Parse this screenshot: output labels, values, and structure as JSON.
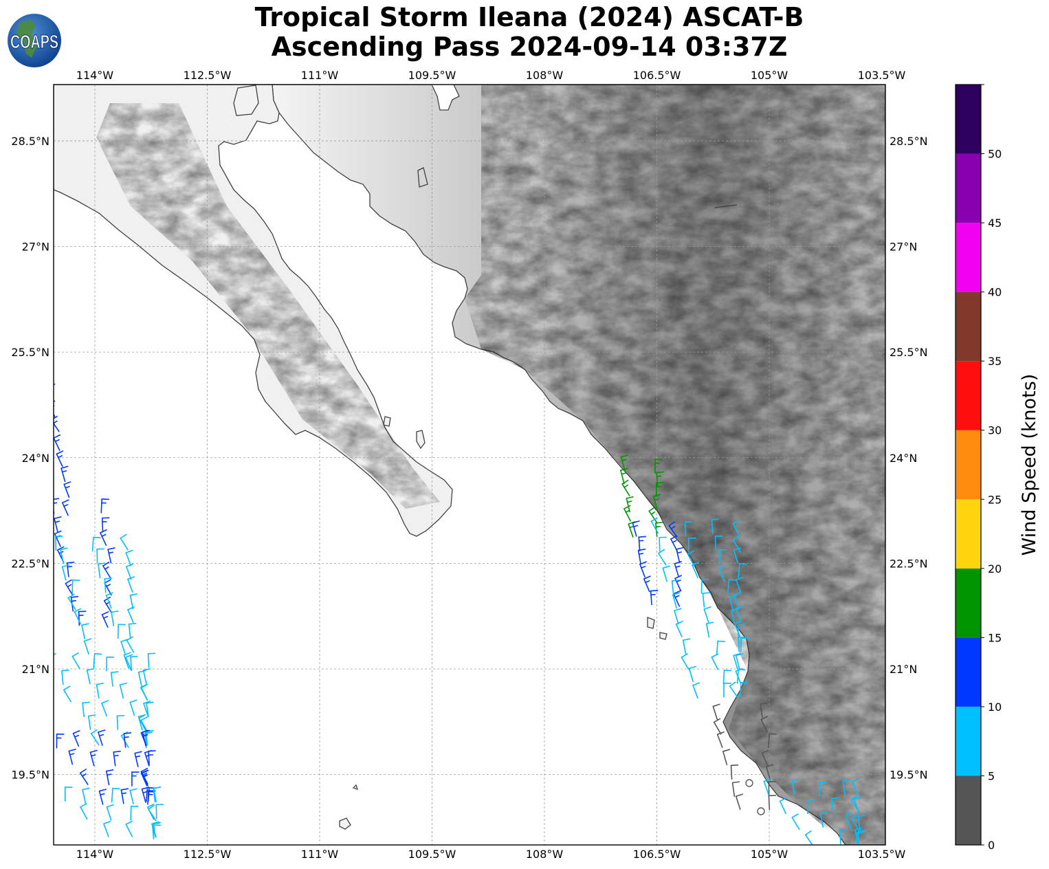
{
  "title": {
    "line1": "Tropical Storm Ileana (2024) ASCAT-B",
    "line2": "Ascending Pass 2024-09-14 03:37Z"
  },
  "logo": {
    "text": "COAPS",
    "icon": "globe-logo-icon"
  },
  "map": {
    "lon_range": [
      -114.55,
      -103.45
    ],
    "lat_range": [
      18.5,
      29.3
    ],
    "lon_ticks": [
      {
        "value": -114.0,
        "label": "114°W"
      },
      {
        "value": -112.5,
        "label": "112.5°W"
      },
      {
        "value": -111.0,
        "label": "111°W"
      },
      {
        "value": -109.5,
        "label": "109.5°W"
      },
      {
        "value": -108.0,
        "label": "108°W"
      },
      {
        "value": -106.5,
        "label": "106.5°W"
      },
      {
        "value": -105.0,
        "label": "105°W"
      },
      {
        "value": -103.5,
        "label": "103.5°W"
      }
    ],
    "lat_ticks": [
      {
        "value": 28.5,
        "label": "28.5°N"
      },
      {
        "value": 27.0,
        "label": "27°N"
      },
      {
        "value": 25.5,
        "label": "25.5°N"
      },
      {
        "value": 24.0,
        "label": "24°N"
      },
      {
        "value": 22.5,
        "label": "22.5°N"
      },
      {
        "value": 21.0,
        "label": "21°N"
      },
      {
        "value": 19.5,
        "label": "19.5°N"
      }
    ],
    "gridlines": true,
    "background": "grayscale topography over land, white ocean"
  },
  "colorbar": {
    "label": "Wind Speed (knots)",
    "ticks": [
      "0",
      "5",
      "10",
      "15",
      "20",
      "25",
      "30",
      "35",
      "40",
      "45",
      "50"
    ],
    "bins": [
      {
        "min": 0,
        "max": 5,
        "color": "#555555"
      },
      {
        "min": 5,
        "max": 10,
        "color": "#00bfff"
      },
      {
        "min": 10,
        "max": 15,
        "color": "#0038ff"
      },
      {
        "min": 15,
        "max": 20,
        "color": "#009500"
      },
      {
        "min": 20,
        "max": 25,
        "color": "#ffd510"
      },
      {
        "min": 25,
        "max": 30,
        "color": "#ff8c0c"
      },
      {
        "min": 30,
        "max": 35,
        "color": "#ff0e0e"
      },
      {
        "min": 35,
        "max": 40,
        "color": "#80392a"
      },
      {
        "min": 40,
        "max": 45,
        "color": "#f200f2"
      },
      {
        "min": 45,
        "max": 50,
        "color": "#8800b0"
      },
      {
        "min": 50,
        "max": 55,
        "color": "#2d005f"
      }
    ]
  },
  "wind_swaths": [
    {
      "name": "west swath",
      "segments": [
        {
          "lat_start": 24.8,
          "lat_end": 23.2,
          "lon_start": -114.55,
          "lon_end": -114.2,
          "rows": 8,
          "cols": 1,
          "color": "#0038ff"
        },
        {
          "lat_start": 23.2,
          "lat_end": 21.6,
          "lon_start": -114.55,
          "lon_end": -114.0,
          "rows": 8,
          "cols": 2,
          "color": "#0038ff"
        },
        {
          "lat_start": 22.7,
          "lat_end": 21.0,
          "lon_start": -114.5,
          "lon_end": -113.7,
          "rows": 9,
          "cols": 3,
          "color": "#00bfff"
        },
        {
          "lat_start": 21.0,
          "lat_end": 19.9,
          "lon_start": -114.55,
          "lon_end": -113.5,
          "rows": 6,
          "cols": 5,
          "color": "#00bfff"
        },
        {
          "lat_start": 19.9,
          "lat_end": 19.1,
          "lon_start": -114.5,
          "lon_end": -113.5,
          "rows": 4,
          "cols": 6,
          "color": "#0038ff"
        },
        {
          "lat_start": 19.1,
          "lat_end": 18.6,
          "lon_start": -114.4,
          "lon_end": -113.4,
          "rows": 3,
          "cols": 6,
          "color": "#00bfff"
        }
      ]
    },
    {
      "name": "east swath",
      "segments": [
        {
          "lat_start": 23.8,
          "lat_end": 22.9,
          "lon_start": -106.95,
          "lon_end": -106.7,
          "rows": 6,
          "cols": 2,
          "color": "#009500"
        },
        {
          "lat_start": 22.9,
          "lat_end": 21.9,
          "lon_start": -106.8,
          "lon_end": -106.4,
          "rows": 6,
          "cols": 2,
          "color": "#0038ff"
        },
        {
          "lat_start": 22.9,
          "lat_end": 20.6,
          "lon_start": -106.5,
          "lon_end": -105.6,
          "rows": 12,
          "cols": 4,
          "color": "#00bfff"
        },
        {
          "lat_start": 20.3,
          "lat_end": 19.0,
          "lon_start": -105.7,
          "lon_end": -105.2,
          "rows": 7,
          "cols": 2,
          "color": "#555555"
        },
        {
          "lat_start": 19.2,
          "lat_end": 18.5,
          "lon_start": -105.0,
          "lon_end": -104.0,
          "rows": 4,
          "cols": 5,
          "color": "#00bfff"
        }
      ]
    }
  ]
}
